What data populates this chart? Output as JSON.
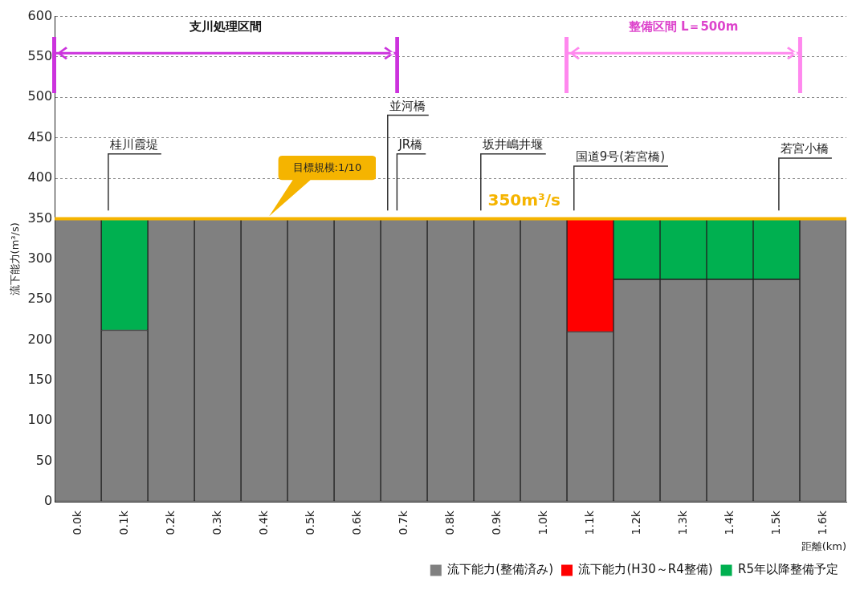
{
  "chart_data": {
    "type": "bar",
    "stacked": true,
    "ylabel": "流下能力(m³/s)",
    "xlabel": "距離(km)",
    "categories": [
      "0.0k",
      "0.1k",
      "0.2k",
      "0.3k",
      "0.4k",
      "0.5k",
      "0.6k",
      "0.7k",
      "0.8k",
      "0.9k",
      "1.0k",
      "1.1k",
      "1.2k",
      "1.3k",
      "1.4k",
      "1.5k",
      "1.6k"
    ],
    "series": [
      {
        "name": "流下能力(整備済み)",
        "color": "#808080",
        "values": [
          350,
          212,
          350,
          350,
          350,
          350,
          350,
          350,
          350,
          350,
          350,
          210,
          275,
          275,
          275,
          275,
          350
        ]
      },
      {
        "name": "流下能力(H30～R4整備)",
        "color": "#ff0000",
        "values": [
          null,
          null,
          null,
          null,
          null,
          null,
          null,
          null,
          null,
          null,
          null,
          140,
          null,
          null,
          null,
          null,
          null
        ]
      },
      {
        "name": "R5年以降整備予定",
        "color": "#00b050",
        "values": [
          null,
          138,
          null,
          null,
          null,
          null,
          null,
          null,
          null,
          null,
          null,
          null,
          75,
          75,
          75,
          75,
          null
        ]
      }
    ],
    "ylim": [
      0,
      600
    ],
    "yticks": [
      0,
      50,
      100,
      150,
      200,
      250,
      300,
      350,
      400,
      450,
      500,
      550,
      600
    ],
    "grid": "y",
    "legend": "bottom right",
    "ref_lines": [
      {
        "axis": "y",
        "value": 350,
        "label": "350m³/s",
        "color": "#f5b400"
      }
    ],
    "annotations": [
      "支川処理区間",
      "整備区間 L＝500m",
      "目標規模:1/10",
      "桂川霞堤",
      "並河橋",
      "JR橋",
      "坂井嶋井堰",
      "国道9号(若宮橋)",
      "若宮小橋"
    ]
  }
}
